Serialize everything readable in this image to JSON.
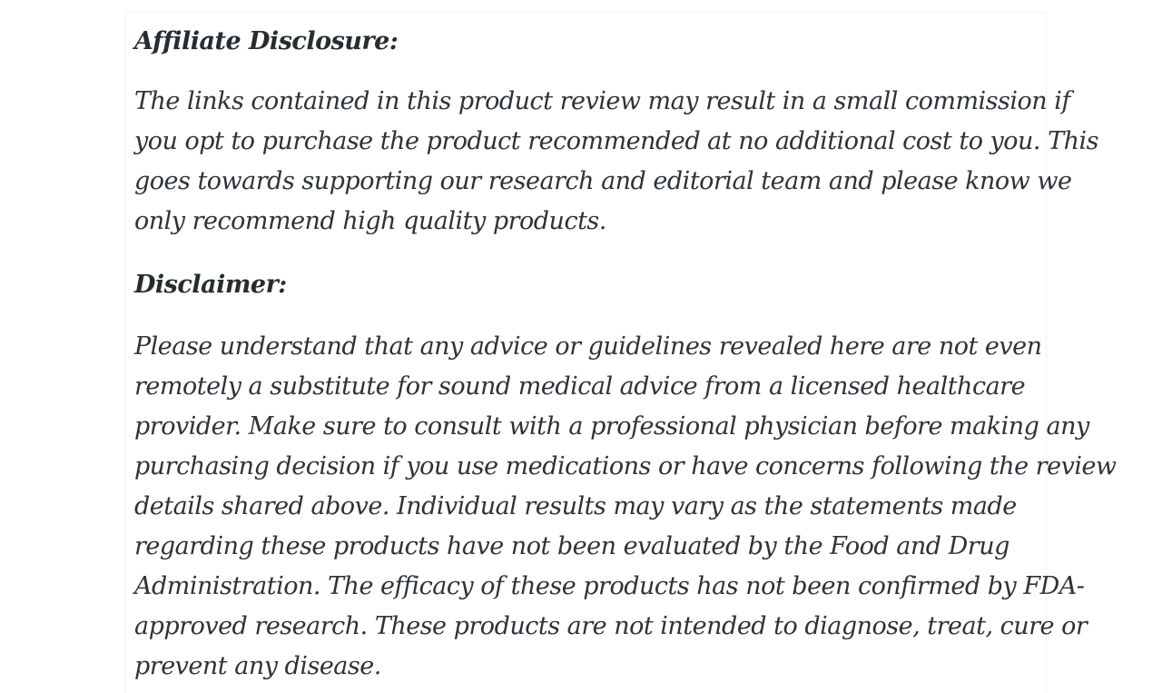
{
  "colors": {
    "page_background": "#ffffff",
    "heading_text": "#272c31",
    "body_text": "#2e3338",
    "card_edge": "#f1f1f1"
  },
  "affiliate": {
    "heading": "Affiliate Disclosure:",
    "lines": [
      "The links contained in this product review may result in a small commission if",
      "you opt to purchase the product recommended at no additional cost to you. This",
      "goes towards supporting our research and editorial team and please know we",
      "only recommend high quality products."
    ]
  },
  "disclaimer": {
    "heading": "Disclaimer:",
    "lines": [
      "Please understand that any advice or guidelines revealed here are not even",
      "remotely a substitute for sound medical advice from a licensed healthcare",
      "provider. Make sure to consult with a professional physician before making any",
      "purchasing decision if you use medications or have concerns following the review",
      "details shared above. Individual results may vary as the statements made",
      "regarding these products have not been evaluated by the Food and Drug",
      "Administration. The efficacy of these products has not been confirmed by FDA-",
      "approved research. These products are not intended to diagnose, treat, cure or",
      "prevent any disease."
    ]
  }
}
